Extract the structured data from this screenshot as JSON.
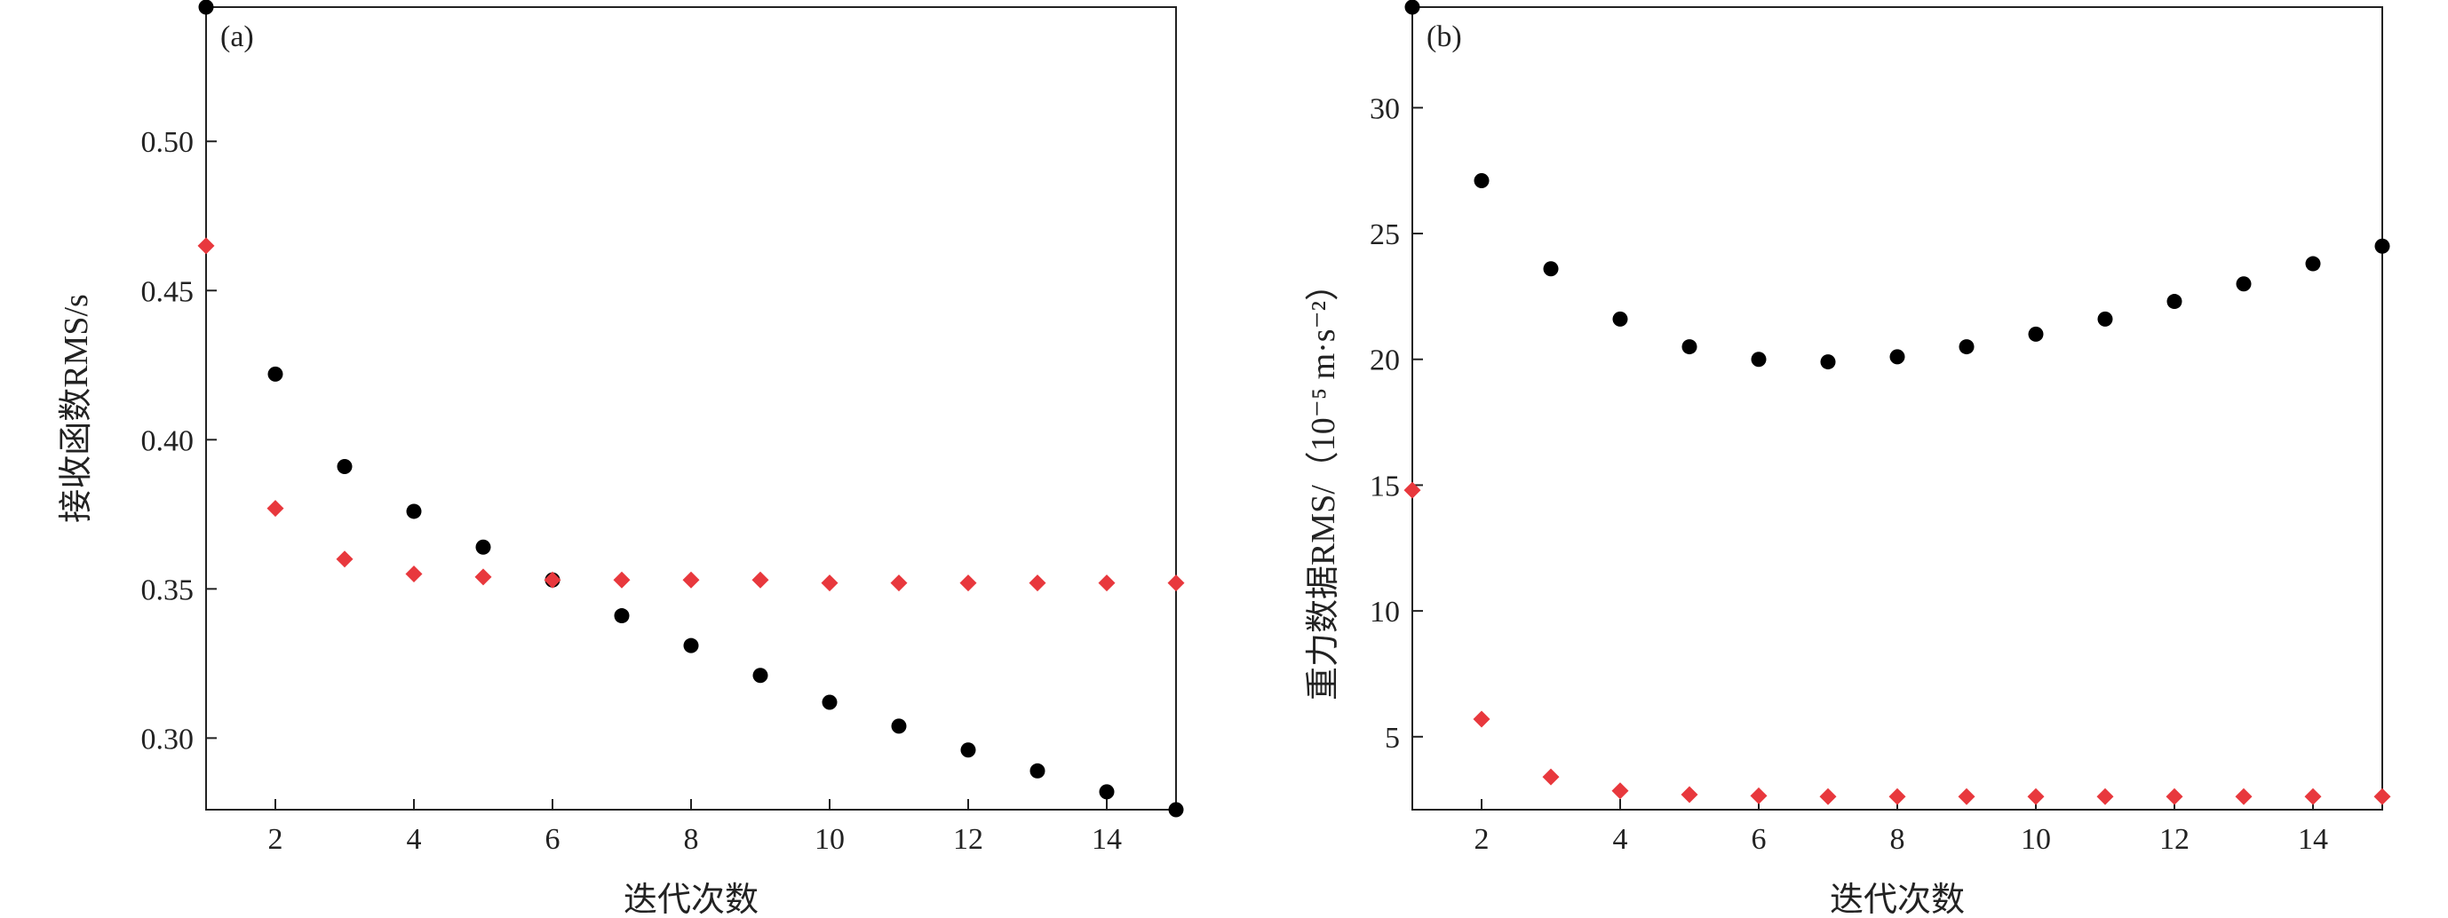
{
  "chart_data": [
    {
      "type": "scatter",
      "panel_label": "(a)",
      "xlabel": "迭代次数",
      "ylabel": "接收函数RMS/s",
      "xlim": [
        1,
        15
      ],
      "ylim": [
        0.276,
        0.545
      ],
      "x_ticks": [
        2,
        4,
        6,
        8,
        10,
        12,
        14
      ],
      "y_ticks": [
        0.3,
        0.35,
        0.4,
        0.45,
        0.5
      ],
      "y_tick_labels": [
        "0.30",
        "0.35",
        "0.40",
        "0.45",
        "0.50"
      ],
      "grid": false,
      "series": [
        {
          "marker": "circle",
          "color": "#000000",
          "x": [
            1,
            2,
            3,
            4,
            5,
            6,
            7,
            8,
            9,
            10,
            11,
            12,
            13,
            14,
            15
          ],
          "y": [
            0.545,
            0.422,
            0.391,
            0.376,
            0.364,
            0.353,
            0.341,
            0.331,
            0.321,
            0.312,
            0.304,
            0.296,
            0.289,
            0.282,
            0.276
          ]
        },
        {
          "marker": "diamond",
          "color": "#e8383d",
          "x": [
            1,
            2,
            3,
            4,
            5,
            6,
            7,
            8,
            9,
            10,
            11,
            12,
            13,
            14,
            15
          ],
          "y": [
            0.465,
            0.377,
            0.36,
            0.355,
            0.354,
            0.353,
            0.353,
            0.353,
            0.353,
            0.352,
            0.352,
            0.352,
            0.352,
            0.352,
            0.352
          ]
        }
      ]
    },
    {
      "type": "scatter",
      "panel_label": "(b)",
      "xlabel": "迭代次数",
      "ylabel": "重力数据RMS/（10⁻⁵ m·s⁻²）",
      "xlim": [
        1,
        15
      ],
      "ylim": [
        2.1,
        34.0
      ],
      "x_ticks": [
        2,
        4,
        6,
        8,
        10,
        12,
        14
      ],
      "y_ticks": [
        5,
        10,
        15,
        20,
        25,
        30
      ],
      "y_tick_labels": [
        "5",
        "10",
        "15",
        "20",
        "25",
        "30"
      ],
      "grid": false,
      "series": [
        {
          "marker": "circle",
          "color": "#000000",
          "x": [
            1,
            2,
            3,
            4,
            5,
            6,
            7,
            8,
            9,
            10,
            11,
            12,
            13,
            14,
            15
          ],
          "y": [
            34.0,
            27.1,
            23.6,
            21.6,
            20.5,
            20.0,
            19.9,
            20.1,
            20.5,
            21.0,
            21.6,
            22.3,
            23.0,
            23.8,
            24.5
          ]
        },
        {
          "marker": "diamond",
          "color": "#e8383d",
          "x": [
            1,
            2,
            3,
            4,
            5,
            6,
            7,
            8,
            9,
            10,
            11,
            12,
            13,
            14,
            15
          ],
          "y": [
            14.8,
            5.7,
            3.4,
            2.85,
            2.7,
            2.65,
            2.62,
            2.62,
            2.62,
            2.62,
            2.62,
            2.62,
            2.62,
            2.62,
            2.62
          ]
        }
      ]
    }
  ]
}
